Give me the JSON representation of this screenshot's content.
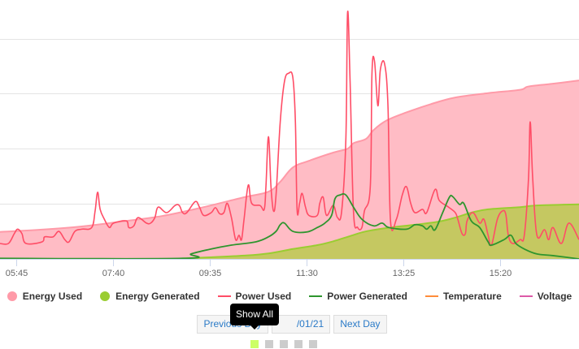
{
  "colors": {
    "energy_used_fill": "#ffbcc5",
    "energy_used_line": "#ff9aa8",
    "energy_generated_fill": "#c2c85c",
    "energy_generated_line": "#9acd32",
    "power_used": "#ff4d66",
    "power_generated": "#2e952e",
    "temperature": "#ff8c3a",
    "voltage": "#dd5aa8",
    "grid": "#e4e4e4",
    "page_active": "#ccff66",
    "page_inactive": "#cccccc"
  },
  "chart_data": {
    "type": "line",
    "x_unit": "minutes since 05:26",
    "xlim": [
      0,
      688
    ],
    "ylim": [
      0,
      4.7
    ],
    "y_grid": [
      1,
      2,
      3,
      4
    ],
    "grid": true,
    "x_ticks": [
      {
        "label": "05:45",
        "x": 19
      },
      {
        "label": "07:40",
        "x": 134
      },
      {
        "label": "09:35",
        "x": 249
      },
      {
        "label": "11:30",
        "x": 364
      },
      {
        "label": "13:25",
        "x": 479
      },
      {
        "label": "15:20",
        "x": 594
      }
    ],
    "series": [
      {
        "name": "Energy Used",
        "kind": "area",
        "points": [
          [
            0,
            0.49
          ],
          [
            48,
            0.53
          ],
          [
            97,
            0.59
          ],
          [
            145,
            0.68
          ],
          [
            193,
            0.78
          ],
          [
            242,
            0.94
          ],
          [
            290,
            1.12
          ],
          [
            319,
            1.22
          ],
          [
            333,
            1.4
          ],
          [
            348,
            1.66
          ],
          [
            367,
            1.78
          ],
          [
            396,
            1.93
          ],
          [
            413,
            2.0
          ],
          [
            420,
            2.1
          ],
          [
            435,
            2.18
          ],
          [
            444,
            2.34
          ],
          [
            459,
            2.51
          ],
          [
            483,
            2.66
          ],
          [
            512,
            2.81
          ],
          [
            541,
            2.93
          ],
          [
            580,
            3.01
          ],
          [
            618,
            3.07
          ],
          [
            628,
            3.13
          ],
          [
            657,
            3.18
          ],
          [
            688,
            3.24
          ]
        ]
      },
      {
        "name": "Energy Generated",
        "kind": "area",
        "points": [
          [
            0,
            0
          ],
          [
            193,
            0
          ],
          [
            217,
            0.01
          ],
          [
            251,
            0.03
          ],
          [
            290,
            0.06
          ],
          [
            319,
            0.1
          ],
          [
            348,
            0.18
          ],
          [
            377,
            0.25
          ],
          [
            396,
            0.32
          ],
          [
            415,
            0.41
          ],
          [
            435,
            0.5
          ],
          [
            464,
            0.57
          ],
          [
            493,
            0.62
          ],
          [
            522,
            0.68
          ],
          [
            541,
            0.75
          ],
          [
            560,
            0.84
          ],
          [
            580,
            0.9
          ],
          [
            618,
            0.94
          ],
          [
            638,
            0.97
          ],
          [
            688,
            0.99
          ]
        ]
      },
      {
        "name": "Power Used",
        "kind": "line",
        "points": [
          [
            0,
            0.28
          ],
          [
            10,
            0.28
          ],
          [
            17,
            0.46
          ],
          [
            21,
            0.54
          ],
          [
            26,
            0.46
          ],
          [
            31,
            0.28
          ],
          [
            50,
            0.31
          ],
          [
            53,
            0.4
          ],
          [
            63,
            0.4
          ],
          [
            70,
            0.5
          ],
          [
            77,
            0.35
          ],
          [
            82,
            0.31
          ],
          [
            89,
            0.5
          ],
          [
            97,
            0.54
          ],
          [
            109,
            0.57
          ],
          [
            113,
            0.87
          ],
          [
            116,
            1.21
          ],
          [
            119,
            0.9
          ],
          [
            124,
            0.72
          ],
          [
            130,
            0.57
          ],
          [
            135,
            0.65
          ],
          [
            150,
            0.69
          ],
          [
            153,
            0.57
          ],
          [
            159,
            0.6
          ],
          [
            164,
            0.75
          ],
          [
            174,
            0.65
          ],
          [
            179,
            0.65
          ],
          [
            184,
            0.75
          ],
          [
            188,
            0.94
          ],
          [
            198,
            0.84
          ],
          [
            208,
            0.97
          ],
          [
            213,
            0.97
          ],
          [
            217,
            0.84
          ],
          [
            222,
            0.84
          ],
          [
            232,
            1.04
          ],
          [
            237,
            0.94
          ],
          [
            242,
            0.79
          ],
          [
            251,
            0.84
          ],
          [
            256,
            0.93
          ],
          [
            261,
            0.82
          ],
          [
            266,
            0.84
          ],
          [
            270,
            1.01
          ],
          [
            275,
            0.75
          ],
          [
            280,
            0.35
          ],
          [
            284,
            0.43
          ],
          [
            287,
            0.35
          ],
          [
            290,
            0.72
          ],
          [
            295,
            1.34
          ],
          [
            299,
            1.01
          ],
          [
            309,
            0.97
          ],
          [
            314,
            0.9
          ],
          [
            316,
            1.31
          ],
          [
            319,
            2.22
          ],
          [
            322,
            1.31
          ],
          [
            325,
            0.87
          ],
          [
            328,
            1.16
          ],
          [
            333,
            2.49
          ],
          [
            338,
            3.22
          ],
          [
            343,
            3.37
          ],
          [
            348,
            3.29
          ],
          [
            351,
            2.49
          ],
          [
            353,
            0.9
          ],
          [
            356,
            1.01
          ],
          [
            359,
            1.19
          ],
          [
            363,
            0.94
          ],
          [
            367,
            0.79
          ],
          [
            377,
            0.79
          ],
          [
            380,
            1.01
          ],
          [
            384,
            1.12
          ],
          [
            388,
            0.79
          ],
          [
            396,
            0.97
          ],
          [
            401,
            0.75
          ],
          [
            406,
            0.87
          ],
          [
            411,
            2.19
          ],
          [
            413,
            4.47
          ],
          [
            416,
            3.22
          ],
          [
            420,
            0.87
          ],
          [
            425,
            0.57
          ],
          [
            430,
            0.57
          ],
          [
            433,
            0.87
          ],
          [
            440,
            1.31
          ],
          [
            442,
            3.37
          ],
          [
            445,
            3.59
          ],
          [
            449,
            2.78
          ],
          [
            452,
            3.44
          ],
          [
            457,
            3.54
          ],
          [
            461,
            2.78
          ],
          [
            464,
            0.69
          ],
          [
            471,
            0.72
          ],
          [
            478,
            1.16
          ],
          [
            483,
            1.31
          ],
          [
            488,
            1.01
          ],
          [
            493,
            0.84
          ],
          [
            502,
            0.9
          ],
          [
            507,
            0.84
          ],
          [
            517,
            1.26
          ],
          [
            522,
            1.06
          ],
          [
            533,
            0.94
          ],
          [
            541,
            0.84
          ],
          [
            544,
            0.72
          ],
          [
            549,
            0.46
          ],
          [
            553,
            0.46
          ],
          [
            555,
            0.69
          ],
          [
            562,
            0.84
          ],
          [
            570,
            0.65
          ],
          [
            575,
            0.72
          ],
          [
            580,
            0.43
          ],
          [
            584,
            0.25
          ],
          [
            591,
            0.72
          ],
          [
            597,
            0.87
          ],
          [
            601,
            0.81
          ],
          [
            604,
            0.43
          ],
          [
            609,
            0.28
          ],
          [
            618,
            0.35
          ],
          [
            623,
            0.43
          ],
          [
            628,
            1.46
          ],
          [
            630,
            2.49
          ],
          [
            633,
            1.46
          ],
          [
            638,
            0.43
          ],
          [
            647,
            0.53
          ],
          [
            652,
            0.35
          ],
          [
            657,
            0.57
          ],
          [
            667,
            0.28
          ],
          [
            676,
            0.65
          ],
          [
            688,
            0.35
          ]
        ]
      },
      {
        "name": "Power Generated",
        "kind": "line",
        "points": [
          [
            0,
            0.01
          ],
          [
            217,
            0.01
          ],
          [
            227,
            0.09
          ],
          [
            251,
            0.18
          ],
          [
            275,
            0.25
          ],
          [
            304,
            0.31
          ],
          [
            319,
            0.4
          ],
          [
            328,
            0.5
          ],
          [
            333,
            0.62
          ],
          [
            338,
            0.65
          ],
          [
            348,
            0.5
          ],
          [
            365,
            0.49
          ],
          [
            377,
            0.57
          ],
          [
            386,
            0.65
          ],
          [
            394,
            0.79
          ],
          [
            398,
            1.09
          ],
          [
            404,
            1.16
          ],
          [
            411,
            1.16
          ],
          [
            420,
            0.94
          ],
          [
            430,
            0.72
          ],
          [
            444,
            0.6
          ],
          [
            454,
            0.65
          ],
          [
            462,
            0.57
          ],
          [
            483,
            0.54
          ],
          [
            493,
            0.62
          ],
          [
            502,
            0.6
          ],
          [
            507,
            0.54
          ],
          [
            512,
            0.6
          ],
          [
            517,
            0.53
          ],
          [
            526,
            0.84
          ],
          [
            534,
            1.12
          ],
          [
            538,
            1.13
          ],
          [
            546,
            0.99
          ],
          [
            551,
            1.01
          ],
          [
            560,
            0.69
          ],
          [
            570,
            0.57
          ],
          [
            580,
            0.31
          ],
          [
            584,
            0.25
          ],
          [
            599,
            0.35
          ],
          [
            607,
            0.43
          ],
          [
            613,
            0.28
          ],
          [
            623,
            0.18
          ],
          [
            638,
            0.09
          ],
          [
            657,
            0.06
          ],
          [
            688,
            0
          ]
        ]
      },
      {
        "name": "Temperature",
        "kind": "line",
        "points": []
      },
      {
        "name": "Voltage",
        "kind": "line",
        "points": []
      }
    ]
  },
  "legend": [
    {
      "label": "Energy Used",
      "type": "dot",
      "color": "#ff9aa8"
    },
    {
      "label": "Energy Generated",
      "type": "dot",
      "color": "#9acd32"
    },
    {
      "label": "Power Used",
      "type": "dash",
      "color": "#ff4d66"
    },
    {
      "label": "Power Generated",
      "type": "dash",
      "color": "#2e952e"
    },
    {
      "label": "Temperature",
      "type": "dash",
      "color": "#ff8c3a"
    },
    {
      "label": "Voltage",
      "type": "dash",
      "color": "#dd5aa8"
    }
  ],
  "nav": {
    "previous_label": "Previous Day",
    "date_label": "/01/21",
    "next_label": "Next Day",
    "tooltip": "Show All"
  },
  "pager": {
    "count": 5,
    "active": 0
  }
}
